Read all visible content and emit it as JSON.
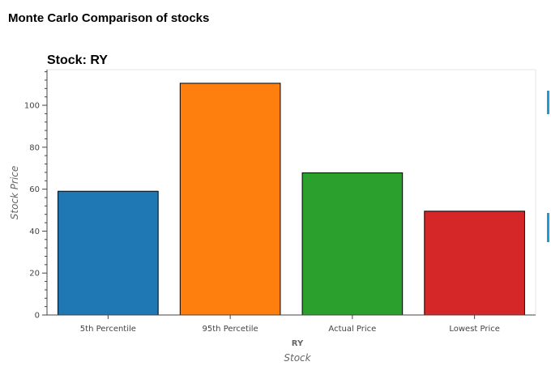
{
  "page_title": "Monte Carlo Comparison of stocks",
  "colors": {
    "accent": "#1f9ad6"
  },
  "chart_data": {
    "type": "bar",
    "title": "Stock: RY",
    "categories": [
      "5th Percentile",
      "95th Percetile",
      "Actual Price",
      "Lowest Price"
    ],
    "values": [
      59,
      110.5,
      67.8,
      49.5
    ],
    "colors": [
      "#1f77b4",
      "#ff7f0e",
      "#2ca02c",
      "#d62728"
    ],
    "group_label": "RY",
    "xlabel": "Stock",
    "ylabel": "Stock Price",
    "ylim": [
      0,
      117
    ],
    "yticks": [
      0,
      20,
      40,
      60,
      80,
      100
    ],
    "grid": false,
    "legend": "none"
  }
}
